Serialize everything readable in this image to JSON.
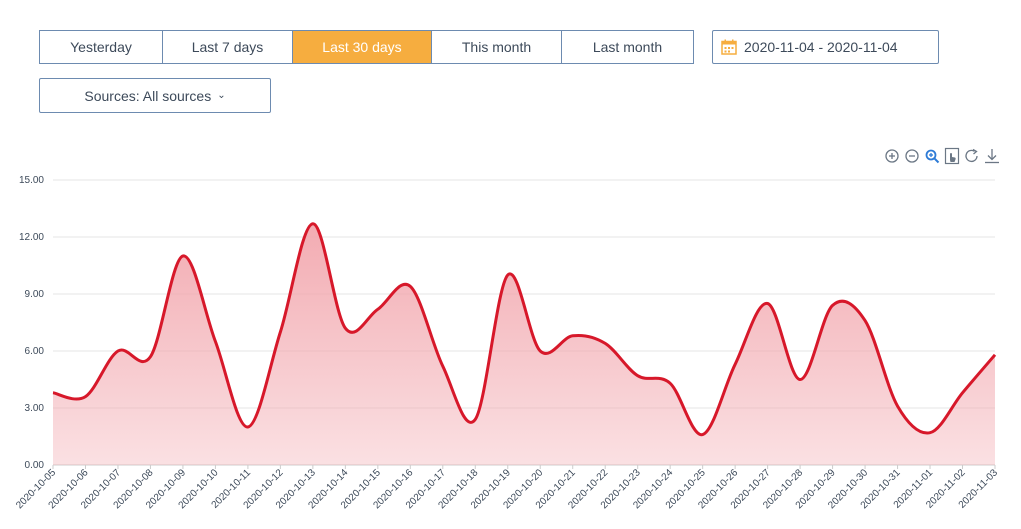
{
  "range_buttons": [
    {
      "label": "Yesterday",
      "active": false
    },
    {
      "label": "Last 7 days",
      "active": false
    },
    {
      "label": "Last 30 days",
      "active": true
    },
    {
      "label": "This month",
      "active": false
    },
    {
      "label": "Last month",
      "active": false
    }
  ],
  "date_range": {
    "value": "2020-11-04 - 2020-11-04",
    "icon": "calendar-icon"
  },
  "sources": {
    "label": "Sources: All sources"
  },
  "toolbox": [
    "zoom-in-icon",
    "zoom-out-icon",
    "zoom-select-icon",
    "pan-icon",
    "reset-icon",
    "download-icon"
  ],
  "colors": {
    "accent": "#f6ad3f",
    "line": "#d7182a",
    "area": "#f2a7ae",
    "border": "#6d8bb0"
  },
  "chart_data": {
    "type": "area",
    "x": [
      "2020-10-05",
      "2020-10-06",
      "2020-10-07",
      "2020-10-08",
      "2020-10-09",
      "2020-10-10",
      "2020-10-11",
      "2020-10-12",
      "2020-10-13",
      "2020-10-14",
      "2020-10-15",
      "2020-10-16",
      "2020-10-17",
      "2020-10-18",
      "2020-10-19",
      "2020-10-20",
      "2020-10-21",
      "2020-10-22",
      "2020-10-23",
      "2020-10-24",
      "2020-10-25",
      "2020-10-26",
      "2020-10-27",
      "2020-10-28",
      "2020-10-29",
      "2020-10-30",
      "2020-10-31",
      "2020-11-01",
      "2020-11-02",
      "2020-11-03"
    ],
    "series": [
      {
        "values": [
          3.8,
          3.6,
          6.0,
          5.7,
          11.0,
          6.5,
          2.0,
          7.0,
          12.7,
          7.2,
          8.2,
          9.4,
          5.2,
          2.4,
          10.0,
          6.0,
          6.8,
          6.4,
          4.7,
          4.3,
          1.6,
          5.3,
          8.5,
          4.5,
          8.4,
          7.6,
          3.1,
          1.7,
          3.8,
          5.8
        ]
      }
    ],
    "y_ticks": [
      "0.00",
      "3.00",
      "6.00",
      "9.00",
      "12.00",
      "15.00"
    ],
    "ylim": [
      0,
      15
    ],
    "grid": true,
    "legend": "none",
    "title": "",
    "xlabel": "",
    "ylabel": ""
  }
}
